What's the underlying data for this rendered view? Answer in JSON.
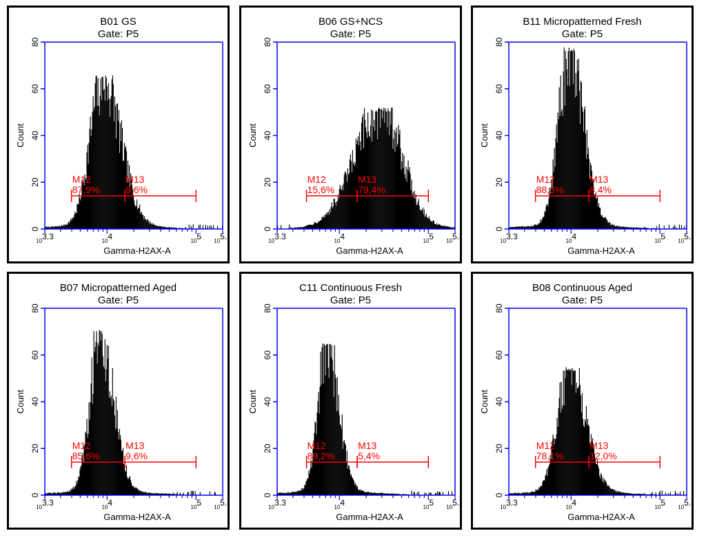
{
  "colors": {
    "axis": "#0000ff",
    "marker": "#ff0000",
    "bars": "#000000",
    "text": "#000000"
  },
  "chart_data": [
    {
      "type": "bar",
      "title": "B01 GS",
      "subtitle": "Gate: P5",
      "xlabel": "Gamma-H2AX-A",
      "ylabel": "Count",
      "xscale": "log",
      "xlim": [
        3.3,
        5.3
      ],
      "ylim": [
        0,
        80
      ],
      "yticks": [
        0,
        20,
        40,
        60,
        80
      ],
      "xtick_labels": [
        "10^3.3",
        "10^4",
        "10^5",
        "10^5.3"
      ],
      "histogram": {
        "peak_log10": 3.95,
        "peak_count": 66,
        "sigma_left": 0.14,
        "sigma_right": 0.2
      },
      "markers": [
        {
          "name": "M12",
          "value": "87,9%",
          "range_log10": [
            3.6,
            4.2
          ]
        },
        {
          "name": "M13",
          "value": "9,6%",
          "range_log10": [
            4.2,
            5.0
          ]
        }
      ]
    },
    {
      "type": "bar",
      "title": "B06 GS+NCS",
      "subtitle": "Gate: P5",
      "xlabel": "Gamma-H2AX-A",
      "ylabel": "Count",
      "xscale": "log",
      "xlim": [
        3.3,
        5.3
      ],
      "ylim": [
        0,
        80
      ],
      "yticks": [
        0,
        20,
        40,
        60,
        80
      ],
      "xtick_labels": [
        "10^3.3",
        "10^4",
        "10^5",
        "10^5.3"
      ],
      "histogram": {
        "peak_log10": 4.48,
        "peak_count": 52,
        "sigma_left": 0.3,
        "sigma_right": 0.23
      },
      "markers": [
        {
          "name": "M12",
          "value": "15,6%",
          "range_log10": [
            3.63,
            4.2
          ]
        },
        {
          "name": "M13",
          "value": "79,4%",
          "range_log10": [
            4.2,
            5.0
          ]
        }
      ]
    },
    {
      "type": "bar",
      "title": "B11 Micropatterned Fresh",
      "subtitle": "Gate: P5",
      "xlabel": "Gamma-H2AX-A",
      "ylabel": "Count",
      "xscale": "log",
      "xlim": [
        3.3,
        5.3
      ],
      "ylim": [
        0,
        80
      ],
      "yticks": [
        0,
        20,
        40,
        60,
        80
      ],
      "xtick_labels": [
        "10^3.3",
        "10^4",
        "10^5",
        "10^5.3"
      ],
      "histogram": {
        "peak_log10": 3.98,
        "peak_count": 78,
        "sigma_left": 0.12,
        "sigma_right": 0.16
      },
      "markers": [
        {
          "name": "M12",
          "value": "88,3%",
          "range_log10": [
            3.6,
            4.2
          ]
        },
        {
          "name": "M13",
          "value": "8,4%",
          "range_log10": [
            4.2,
            5.0
          ]
        }
      ]
    },
    {
      "type": "bar",
      "title": "B07 Micropatterned Aged",
      "subtitle": "Gate: P5",
      "xlabel": "Gamma-H2AX-A",
      "ylabel": "Count",
      "xscale": "log",
      "xlim": [
        3.3,
        5.3
      ],
      "ylim": [
        0,
        80
      ],
      "yticks": [
        0,
        20,
        40,
        60,
        80
      ],
      "xtick_labels": [
        "10^3.3",
        "10^4",
        "10^5",
        "10^5.3"
      ],
      "histogram": {
        "peak_log10": 3.92,
        "peak_count": 71,
        "sigma_left": 0.11,
        "sigma_right": 0.15
      },
      "markers": [
        {
          "name": "M12",
          "value": "85,6%",
          "range_log10": [
            3.6,
            4.2
          ]
        },
        {
          "name": "M13",
          "value": "9,6%",
          "range_log10": [
            4.2,
            5.0
          ]
        }
      ]
    },
    {
      "type": "bar",
      "title": "C11 Continuous Fresh",
      "subtitle": "Gate: P5",
      "xlabel": "Gamma-H2AX-A",
      "ylabel": "Count",
      "xscale": "log",
      "xlim": [
        3.3,
        5.3
      ],
      "ylim": [
        0,
        80
      ],
      "yticks": [
        0,
        20,
        40,
        60,
        80
      ],
      "xtick_labels": [
        "10^3.3",
        "10^4",
        "10^5",
        "10^5.3"
      ],
      "histogram": {
        "peak_log10": 3.86,
        "peak_count": 65,
        "sigma_left": 0.1,
        "sigma_right": 0.13
      },
      "markers": [
        {
          "name": "M12",
          "value": "89,2%",
          "range_log10": [
            3.63,
            4.2
          ]
        },
        {
          "name": "M13",
          "value": "5,4%",
          "range_log10": [
            4.2,
            5.0
          ]
        }
      ]
    },
    {
      "type": "bar",
      "title": "B08 Continuous Aged",
      "subtitle": "Gate: P5",
      "xlabel": "Gamma-H2AX-A",
      "ylabel": "Count",
      "xscale": "log",
      "xlim": [
        3.3,
        5.3
      ],
      "ylim": [
        0,
        80
      ],
      "yticks": [
        0,
        20,
        40,
        60,
        80
      ],
      "xtick_labels": [
        "10^3.3",
        "10^4",
        "10^5",
        "10^5.3"
      ],
      "histogram": {
        "peak_log10": 3.98,
        "peak_count": 55,
        "sigma_left": 0.13,
        "sigma_right": 0.18
      },
      "markers": [
        {
          "name": "M12",
          "value": "78,1%",
          "range_log10": [
            3.6,
            4.2
          ]
        },
        {
          "name": "M13",
          "value": "12,0%",
          "range_log10": [
            4.2,
            5.0
          ]
        }
      ]
    }
  ]
}
